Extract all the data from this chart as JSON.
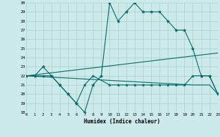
{
  "xlabel": "Humidex (Indice chaleur)",
  "bg_color": "#cceaea",
  "grid_color": "#aacccc",
  "line_color": "#006666",
  "xmin": 0,
  "xmax": 23,
  "ymin": 18,
  "ymax": 30,
  "line1_x": [
    0,
    1,
    2,
    3,
    4,
    5,
    6,
    7,
    8,
    9,
    10,
    11,
    12,
    13,
    14,
    15,
    16,
    17,
    18,
    19,
    20,
    21,
    22,
    23
  ],
  "line1_y": [
    22,
    22,
    23,
    22,
    21,
    20,
    19,
    18,
    21,
    22,
    30,
    28,
    29,
    30,
    29,
    29,
    29,
    28,
    27,
    27,
    25,
    22,
    22,
    20
  ],
  "line2_x": [
    0,
    2,
    3,
    4,
    5,
    6,
    7,
    8,
    10,
    11,
    12,
    13,
    14,
    15,
    16,
    17,
    18,
    19,
    20,
    21,
    22,
    23
  ],
  "line2_y": [
    22,
    22,
    22,
    21,
    20,
    19,
    21,
    22,
    21,
    21,
    21,
    21,
    21,
    21,
    21,
    21,
    21,
    21,
    22,
    22,
    22,
    20
  ],
  "line3_x": [
    0,
    23
  ],
  "line3_y": [
    22,
    24.5
  ],
  "line4_x": [
    0,
    20,
    21,
    22,
    23
  ],
  "line4_y": [
    22,
    21,
    21,
    21,
    20
  ]
}
